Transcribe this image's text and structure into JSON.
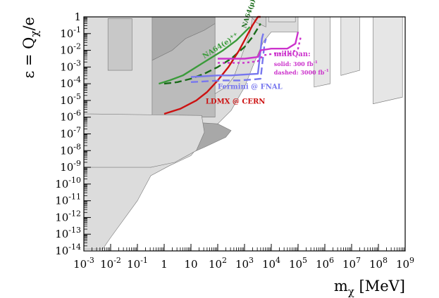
{
  "chart_data": {
    "type": "line",
    "xscale": "log",
    "yscale": "log",
    "xlim_exp": [
      -3,
      9
    ],
    "ylim_exp": [
      -14,
      0
    ],
    "x_tick_labels": [
      {
        "base": "10",
        "exp": "-3"
      },
      {
        "base": "10",
        "exp": "-2"
      },
      {
        "base": "10",
        "exp": "-1"
      },
      {
        "base": "1",
        "exp": ""
      },
      {
        "base": "10",
        "exp": ""
      },
      {
        "base": "10",
        "exp": "2"
      },
      {
        "base": "10",
        "exp": "3"
      },
      {
        "base": "10",
        "exp": "4"
      },
      {
        "base": "10",
        "exp": "5"
      },
      {
        "base": "10",
        "exp": "6"
      },
      {
        "base": "10",
        "exp": "7"
      },
      {
        "base": "10",
        "exp": "8"
      },
      {
        "base": "10",
        "exp": "9"
      }
    ],
    "y_tick_labels": [
      {
        "base": "1",
        "exp": ""
      },
      {
        "base": "10",
        "exp": "-1"
      },
      {
        "base": "10",
        "exp": "-2"
      },
      {
        "base": "10",
        "exp": "-3"
      },
      {
        "base": "10",
        "exp": "-4"
      },
      {
        "base": "10",
        "exp": "-5"
      },
      {
        "base": "10",
        "exp": "-6"
      },
      {
        "base": "10",
        "exp": "-7"
      },
      {
        "base": "10",
        "exp": "-8"
      },
      {
        "base": "10",
        "exp": "-9"
      },
      {
        "base": "10",
        "exp": "-10"
      },
      {
        "base": "10",
        "exp": "-11"
      },
      {
        "base": "10",
        "exp": "-12"
      },
      {
        "base": "10",
        "exp": "-13"
      },
      {
        "base": "10",
        "exp": "-14"
      }
    ],
    "xlabel": {
      "main": "m",
      "sub": "χ",
      "rest": " [MeV]"
    },
    "ylabel": {
      "main": "ε = Q",
      "sub": "χ",
      "rest": "/e"
    },
    "grid": false,
    "excluded_regions": [
      {
        "color": "#dcdcdc",
        "points_log": [
          [
            -2.5,
            -13.9
          ],
          [
            -2.3,
            -13.9
          ],
          [
            -2.0,
            -13.2
          ],
          [
            -1.0,
            -11.0
          ],
          [
            -0.5,
            -9.5
          ],
          [
            0.2,
            -8.9
          ],
          [
            1.0,
            -8.3
          ],
          [
            1.5,
            -7.3
          ],
          [
            2.0,
            -6.4
          ],
          [
            2.5,
            -5.6
          ],
          [
            3.0,
            -4.2
          ],
          [
            3.4,
            -2.6
          ],
          [
            3.7,
            -1.5
          ],
          [
            4.0,
            -0.9
          ],
          [
            5.0,
            -0.9
          ],
          [
            5.0,
            0
          ],
          [
            -3,
            0
          ],
          [
            -3,
            -13.9
          ]
        ]
      },
      {
        "color": "#c8c8c8",
        "points_log": [
          [
            -2.1,
            -0.1
          ],
          [
            -1.2,
            -0.1
          ],
          [
            -1.2,
            -3.2
          ],
          [
            -2.1,
            -3.2
          ]
        ]
      },
      {
        "color": "#aaaaaa",
        "points_log": [
          [
            -0.45,
            -2.6
          ],
          [
            -0.2,
            -2.4
          ],
          [
            0.3,
            -2.0
          ],
          [
            0.8,
            -1.3
          ],
          [
            1.5,
            -0.8
          ],
          [
            1.9,
            -0.4
          ],
          [
            1.9,
            0
          ],
          [
            -0.45,
            0
          ]
        ]
      },
      {
        "color": "#bbbbbb",
        "points_log": [
          [
            -0.45,
            -6.0
          ],
          [
            1.9,
            -6.0
          ],
          [
            1.9,
            -0.4
          ],
          [
            1.5,
            -0.8
          ],
          [
            0.8,
            -1.3
          ],
          [
            0.3,
            -2.0
          ],
          [
            -0.2,
            -2.4
          ],
          [
            -0.45,
            -2.6
          ]
        ]
      },
      {
        "color": "#a8a8a8",
        "points_log": [
          [
            -0.5,
            -9.0
          ],
          [
            0.5,
            -8.5
          ],
          [
            1.5,
            -7.8
          ],
          [
            2.3,
            -7.2
          ],
          [
            2.5,
            -6.8
          ],
          [
            2.0,
            -6.4
          ],
          [
            1.0,
            -6.3
          ],
          [
            -0.5,
            -6.2
          ]
        ]
      },
      {
        "color": "#dcdcdc",
        "points_log": [
          [
            -3,
            -9.0
          ],
          [
            -0.5,
            -9.0
          ],
          [
            0.4,
            -8.7
          ],
          [
            1.2,
            -8.0
          ],
          [
            1.5,
            -6.9
          ],
          [
            1.4,
            -5.9
          ],
          [
            -3,
            -5.8
          ]
        ]
      },
      {
        "color": "#e6e6e6",
        "points_log": [
          [
            1.9,
            -4.6
          ],
          [
            2.3,
            -4.2
          ],
          [
            2.6,
            -3.6
          ],
          [
            2.9,
            -2.3
          ],
          [
            3.2,
            -1.0
          ],
          [
            3.3,
            0
          ],
          [
            1.9,
            0
          ]
        ]
      },
      {
        "color": "#d2d2d2",
        "points_log": [
          [
            3.25,
            0
          ],
          [
            3.45,
            -0.35
          ],
          [
            3.8,
            -0.6
          ],
          [
            3.8,
            0
          ]
        ]
      },
      {
        "color": "#e2e2e2",
        "points_log": [
          [
            3.9,
            0
          ],
          [
            3.9,
            -0.3
          ],
          [
            4.9,
            -0.3
          ],
          [
            4.9,
            0
          ]
        ]
      },
      {
        "color": "#e6e6e6",
        "points_log": [
          [
            5.6,
            0
          ],
          [
            5.6,
            -4.2
          ],
          [
            6.2,
            -4.0
          ],
          [
            6.2,
            0
          ]
        ]
      },
      {
        "color": "#e6e6e6",
        "points_log": [
          [
            6.6,
            0
          ],
          [
            6.6,
            -3.5
          ],
          [
            7.3,
            -3.2
          ],
          [
            7.3,
            0
          ]
        ]
      },
      {
        "color": "#e6e6e6",
        "points_log": [
          [
            7.8,
            0
          ],
          [
            7.8,
            -5.2
          ],
          [
            8.9,
            -4.8
          ],
          [
            8.9,
            0
          ]
        ]
      }
    ],
    "series": [
      {
        "color": "#3a9b3a",
        "dash": "",
        "x_log": [
          -0.2,
          0.2,
          0.7,
          1.2,
          1.7,
          2.2,
          2.7,
          3.2
        ],
        "y_log": [
          -4.0,
          -3.8,
          -3.5,
          -3.0,
          -2.5,
          -2.0,
          -1.4,
          -0.6
        ]
      },
      {
        "color": "#1a6b1a",
        "dash": "10,5",
        "x_log": [
          0.0,
          0.5,
          1.0,
          1.5,
          2.0,
          2.5,
          3.0,
          3.3,
          3.6
        ],
        "y_log": [
          -4.0,
          -3.9,
          -3.7,
          -3.4,
          -3.0,
          -2.5,
          -1.8,
          -1.2,
          -0.4
        ]
      },
      {
        "color": "#cc1111",
        "dash": "",
        "x_log": [
          0.0,
          0.6,
          1.2,
          1.6,
          2.0,
          2.4,
          2.8,
          3.1,
          3.3,
          3.5,
          3.6
        ],
        "y_log": [
          -5.8,
          -5.5,
          -5.0,
          -4.5,
          -3.8,
          -3.0,
          -2.0,
          -1.1,
          -0.5,
          0.0,
          0.0
        ]
      },
      {
        "color": "#7777ee",
        "dash": "",
        "x_log": [
          1.0,
          1.5,
          2.0,
          2.5,
          3.0,
          3.5,
          3.65,
          3.7
        ],
        "y_log": [
          -3.6,
          -3.55,
          -3.5,
          -3.5,
          -3.45,
          -3.4,
          -1.3,
          -1.0
        ]
      },
      {
        "color": "#7777ee",
        "dash": "10,5",
        "x_log": [
          1.0,
          1.6,
          2.2,
          2.8,
          3.3,
          3.6,
          3.75,
          3.8
        ],
        "y_log": [
          -3.9,
          -3.85,
          -3.8,
          -3.8,
          -3.75,
          -3.7,
          -1.6,
          -1.3
        ]
      },
      {
        "color": "#cc33cc",
        "dash": "",
        "x_log": [
          2.0,
          3.0,
          3.5,
          3.6,
          4.0,
          4.6,
          4.9,
          5.0
        ],
        "y_log": [
          -2.5,
          -2.5,
          -2.4,
          -2.0,
          -1.9,
          -1.9,
          -1.6,
          -0.9
        ]
      },
      {
        "color": "#cc33cc",
        "dash": "3,4",
        "x_log": [
          2.0,
          3.0,
          3.5,
          3.7,
          4.1,
          4.7,
          5.0,
          5.1
        ],
        "y_log": [
          -2.75,
          -2.75,
          -2.65,
          -2.3,
          -2.2,
          -2.2,
          -1.9,
          -1.2
        ]
      }
    ],
    "annotations": [
      {
        "text": "NA64(e)",
        "sup": "++",
        "color": "#3a9b3a",
        "x_log": 1.5,
        "y_log": -2.5,
        "rotate": -32,
        "size": 10
      },
      {
        "text": "NA64(μ)",
        "sup": "++",
        "color": "#1a6b1a",
        "x_log": 3.05,
        "y_log": -0.7,
        "rotate": -72,
        "size": 9
      },
      {
        "text": "milliQan:",
        "sup": "",
        "color": "#cc33cc",
        "x_log": 4.1,
        "y_log": -2.35,
        "rotate": 0,
        "size": 10
      },
      {
        "text": "solid: 300 fb",
        "sup": "-1",
        "color": "#cc33cc",
        "x_log": 4.1,
        "y_log": -2.95,
        "rotate": 0,
        "size": 8
      },
      {
        "text": "dashed: 3000 fb",
        "sup": "-1",
        "color": "#cc33cc",
        "x_log": 4.1,
        "y_log": -3.45,
        "rotate": 0,
        "size": 8
      },
      {
        "text": "Fermini @ FNAL",
        "sup": "",
        "color": "#7777ee",
        "x_log": 2.0,
        "y_log": -4.3,
        "rotate": 0,
        "size": 10
      },
      {
        "text": "LDMX @ CERN",
        "sup": "",
        "color": "#cc1111",
        "x_log": 1.55,
        "y_log": -5.2,
        "rotate": 0,
        "size": 10
      }
    ]
  }
}
